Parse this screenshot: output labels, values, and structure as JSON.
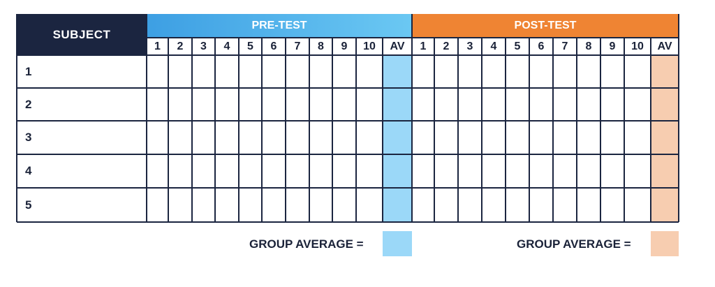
{
  "table": {
    "subject_header": "SUBJECT",
    "pre_test_header": "PRE-TEST",
    "post_test_header": "POST-TEST",
    "pre_columns": [
      "1",
      "2",
      "3",
      "4",
      "5",
      "6",
      "7",
      "8",
      "9",
      "10",
      "AV"
    ],
    "post_columns": [
      "1",
      "2",
      "3",
      "4",
      "5",
      "6",
      "7",
      "8",
      "9",
      "10",
      "AV"
    ],
    "subjects": [
      "1",
      "2",
      "3",
      "4",
      "5"
    ]
  },
  "footer": {
    "pre_group_average_label": "GROUP AVERAGE =",
    "post_group_average_label": "GROUP AVERAGE ="
  },
  "colors": {
    "navy": "#1b2540",
    "pre_header_blue": "#3d9fe3",
    "pre_average_fill": "#9bd8f8",
    "post_header_orange": "#ef8433",
    "post_average_fill": "#f7cdb0"
  }
}
